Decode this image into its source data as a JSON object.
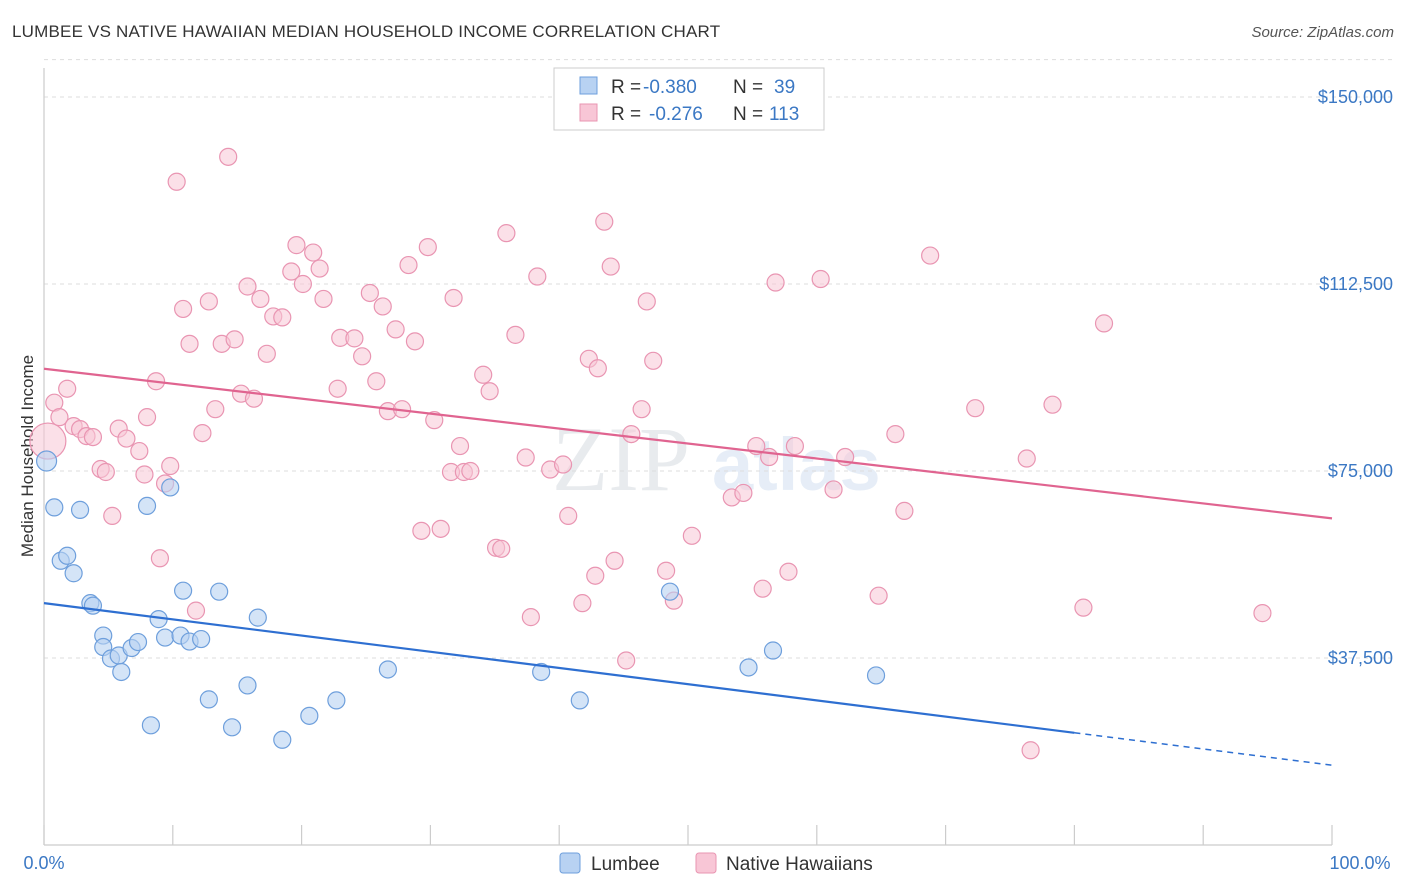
{
  "title": "LUMBEE VS NATIVE HAWAIIAN MEDIAN HOUSEHOLD INCOME CORRELATION CHART",
  "source": "Source: ZipAtlas.com",
  "colors": {
    "lumbee_fill": "#b8d2f2",
    "lumbee_stroke": "#6e9fdc",
    "lumbee_line": "#2e6fd1",
    "hawaiian_fill": "#f8c6d6",
    "hawaiian_stroke": "#e995b2",
    "hawaiian_line": "#e06490",
    "axis_text": "#3b78c4",
    "grid": "#dddddd"
  },
  "chart_data": {
    "type": "scatter",
    "title": "LUMBEE VS NATIVE HAWAIIAN MEDIAN HOUSEHOLD INCOME CORRELATION CHART",
    "xlabel": "",
    "ylabel": "Median Household Income",
    "xlim": [
      0,
      100
    ],
    "ylim": [
      0,
      157500
    ],
    "x_tick_labels": [
      "0.0%",
      "100.0%"
    ],
    "y_ticks": [
      37500,
      75000,
      112500,
      150000
    ],
    "y_tick_labels": [
      "$37,500",
      "$75,000",
      "$112,500",
      "$150,000"
    ],
    "watermark": "ZIPatlas",
    "legend": {
      "rows": [
        {
          "r_label": "R =",
          "r_value": "-0.380",
          "n_label": "N =",
          "n_value": "39"
        },
        {
          "r_label": "R =",
          "r_value": "-0.276",
          "n_label": "N =",
          "n_value": "113"
        }
      ]
    },
    "series": [
      {
        "name": "Lumbee",
        "r": -0.38,
        "n": 39,
        "trend": {
          "x0": 0,
          "y0": 48500,
          "x1": 80,
          "y1": 22500,
          "dash_to_x": 100,
          "dash_to_y": 16000
        },
        "points": [
          [
            0.2,
            77000
          ],
          [
            0.8,
            67700
          ],
          [
            1.3,
            57000
          ],
          [
            1.8,
            58000
          ],
          [
            2.3,
            54500
          ],
          [
            2.8,
            67200
          ],
          [
            3.6,
            48500
          ],
          [
            3.8,
            48000
          ],
          [
            4.6,
            42000
          ],
          [
            4.6,
            39700
          ],
          [
            5.2,
            37400
          ],
          [
            5.8,
            38000
          ],
          [
            6.0,
            34700
          ],
          [
            6.8,
            39500
          ],
          [
            7.3,
            40700
          ],
          [
            8.0,
            68000
          ],
          [
            8.3,
            24000
          ],
          [
            8.9,
            45300
          ],
          [
            9.4,
            41600
          ],
          [
            9.8,
            71700
          ],
          [
            10.6,
            42000
          ],
          [
            10.8,
            51000
          ],
          [
            11.3,
            40800
          ],
          [
            12.2,
            41300
          ],
          [
            12.8,
            29200
          ],
          [
            13.6,
            50800
          ],
          [
            14.6,
            23600
          ],
          [
            15.8,
            32000
          ],
          [
            16.6,
            45600
          ],
          [
            18.5,
            21100
          ],
          [
            20.6,
            25900
          ],
          [
            22.7,
            29000
          ],
          [
            26.7,
            35200
          ],
          [
            38.6,
            34700
          ],
          [
            41.6,
            29000
          ],
          [
            48.6,
            50800
          ],
          [
            54.7,
            35600
          ],
          [
            56.6,
            39000
          ],
          [
            64.6,
            34000
          ]
        ]
      },
      {
        "name": "Native Hawaiians",
        "r": -0.276,
        "n": 113,
        "trend": {
          "x0": 0,
          "y0": 95500,
          "x1": 100,
          "y1": 65500
        },
        "points": [
          [
            0.3,
            81000
          ],
          [
            0.8,
            88700
          ],
          [
            1.2,
            85800
          ],
          [
            1.8,
            91500
          ],
          [
            2.3,
            84000
          ],
          [
            2.8,
            83400
          ],
          [
            3.3,
            82000
          ],
          [
            3.8,
            81800
          ],
          [
            4.4,
            75400
          ],
          [
            4.8,
            74800
          ],
          [
            5.3,
            66000
          ],
          [
            5.8,
            83500
          ],
          [
            6.4,
            81500
          ],
          [
            7.4,
            79000
          ],
          [
            7.8,
            74300
          ],
          [
            8.0,
            85800
          ],
          [
            8.7,
            93000
          ],
          [
            9.0,
            57500
          ],
          [
            9.4,
            72500
          ],
          [
            9.8,
            76000
          ],
          [
            10.3,
            133000
          ],
          [
            10.8,
            107500
          ],
          [
            11.3,
            100500
          ],
          [
            11.8,
            47000
          ],
          [
            12.3,
            82600
          ],
          [
            12.8,
            109000
          ],
          [
            13.3,
            87400
          ],
          [
            13.8,
            100500
          ],
          [
            14.3,
            138000
          ],
          [
            14.8,
            101400
          ],
          [
            15.3,
            90500
          ],
          [
            15.8,
            112000
          ],
          [
            16.3,
            89500
          ],
          [
            16.8,
            109500
          ],
          [
            17.3,
            98500
          ],
          [
            17.8,
            106000
          ],
          [
            18.5,
            105800
          ],
          [
            19.2,
            115000
          ],
          [
            19.6,
            120300
          ],
          [
            20.1,
            112500
          ],
          [
            20.9,
            118800
          ],
          [
            21.4,
            115600
          ],
          [
            21.7,
            109500
          ],
          [
            22.8,
            91500
          ],
          [
            23.0,
            101700
          ],
          [
            24.1,
            101600
          ],
          [
            24.7,
            98000
          ],
          [
            25.3,
            110700
          ],
          [
            25.8,
            93000
          ],
          [
            26.3,
            108000
          ],
          [
            26.7,
            87000
          ],
          [
            27.3,
            103400
          ],
          [
            27.8,
            87400
          ],
          [
            28.3,
            116300
          ],
          [
            28.8,
            101000
          ],
          [
            29.3,
            63000
          ],
          [
            29.8,
            119900
          ],
          [
            30.3,
            85200
          ],
          [
            30.8,
            63400
          ],
          [
            31.6,
            74800
          ],
          [
            31.8,
            109700
          ],
          [
            32.6,
            74800
          ],
          [
            32.3,
            80000
          ],
          [
            33.1,
            75000
          ],
          [
            34.1,
            94300
          ],
          [
            34.6,
            91000
          ],
          [
            35.1,
            59600
          ],
          [
            35.5,
            59400
          ],
          [
            35.9,
            122700
          ],
          [
            36.6,
            102300
          ],
          [
            37.4,
            77700
          ],
          [
            37.8,
            45700
          ],
          [
            38.3,
            114000
          ],
          [
            39.3,
            75300
          ],
          [
            40.3,
            76300
          ],
          [
            40.7,
            66000
          ],
          [
            41.8,
            48500
          ],
          [
            42.3,
            97500
          ],
          [
            42.8,
            54000
          ],
          [
            43.0,
            95600
          ],
          [
            43.5,
            125000
          ],
          [
            44.0,
            116000
          ],
          [
            44.3,
            57000
          ],
          [
            45.2,
            37000
          ],
          [
            45.6,
            82400
          ],
          [
            46.4,
            87400
          ],
          [
            46.8,
            109000
          ],
          [
            47.3,
            97100
          ],
          [
            48.3,
            55000
          ],
          [
            48.9,
            49000
          ],
          [
            50.3,
            62000
          ],
          [
            53.4,
            69700
          ],
          [
            54.3,
            70600
          ],
          [
            55.3,
            80000
          ],
          [
            55.8,
            51400
          ],
          [
            56.3,
            77800
          ],
          [
            56.8,
            112800
          ],
          [
            57.8,
            54800
          ],
          [
            58.3,
            80000
          ],
          [
            60.3,
            113500
          ],
          [
            61.3,
            71300
          ],
          [
            62.2,
            77800
          ],
          [
            64.8,
            50000
          ],
          [
            66.1,
            82400
          ],
          [
            66.8,
            67000
          ],
          [
            68.8,
            118200
          ],
          [
            72.3,
            87600
          ],
          [
            76.3,
            77500
          ],
          [
            76.6,
            19000
          ],
          [
            78.3,
            88300
          ],
          [
            80.7,
            47600
          ],
          [
            82.3,
            104600
          ],
          [
            94.6,
            46500
          ]
        ]
      }
    ]
  },
  "bottom_legend": [
    "Lumbee",
    "Native Hawaiians"
  ]
}
